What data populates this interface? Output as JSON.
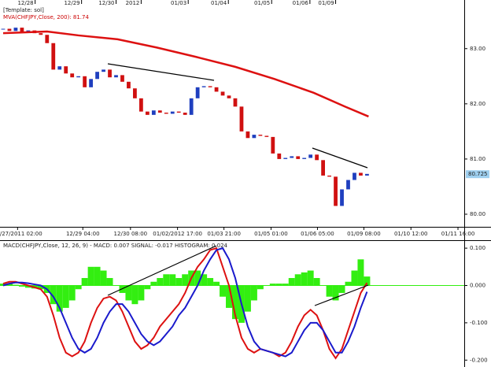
{
  "chart_data": [
    {
      "type": "candlestick",
      "template": "[Template: sol]",
      "legend": "MVA(CHFJPY,Close, 200): 81.74",
      "xlim": [
        0,
        74
      ],
      "ylim": [
        79.8,
        83.81
      ],
      "yticks": [
        {
          "value": 80,
          "label": "80.00"
        },
        {
          "value": 81,
          "label": "81.00"
        },
        {
          "value": 82,
          "label": "82.00"
        },
        {
          "value": 83,
          "label": "83.00"
        }
      ],
      "last_price": 80.725,
      "date_ticks": [
        {
          "value": 5.6,
          "label": "12/28"
        },
        {
          "value": 13,
          "label": "12/29"
        },
        {
          "value": 18.5,
          "label": "12/30"
        },
        {
          "value": 22.5,
          "label": "2012"
        },
        {
          "value": 30,
          "label": "01/03"
        },
        {
          "value": 36.4,
          "label": "01/04"
        },
        {
          "value": 43.3,
          "label": "01/05"
        },
        {
          "value": 49.4,
          "label": "01/06"
        },
        {
          "value": 53.5,
          "label": "01/09"
        }
      ],
      "time_ticks": [
        {
          "value": 2.8,
          "label": "12/27/2011 02:00"
        },
        {
          "value": 13.2,
          "label": "12/29 04:00"
        },
        {
          "value": 20.8,
          "label": "12/30 08:00"
        },
        {
          "value": 28.3,
          "label": "01/02/2012 17:00"
        },
        {
          "value": 35.7,
          "label": "01/03 21:00"
        },
        {
          "value": 43.2,
          "label": "01/05 01:00"
        },
        {
          "value": 50.6,
          "label": "01/06 05:00"
        },
        {
          "value": 58,
          "label": "01/09 08:00"
        },
        {
          "value": 65.5,
          "label": "01/10 12:00"
        },
        {
          "value": 73,
          "label": "01/11 16:00"
        }
      ],
      "up_color": "#1f3fbf",
      "down_color": "#d01010",
      "close": [
        83.36,
        83.32,
        83.38,
        83.3,
        83.33,
        83.28,
        83.25,
        83.1,
        82.62,
        82.68,
        82.55,
        82.48,
        82.5,
        82.3,
        82.45,
        82.58,
        82.62,
        82.48,
        82.52,
        82.4,
        82.28,
        82.1,
        81.86,
        81.8,
        81.88,
        81.84,
        81.82,
        81.86,
        81.84,
        81.8,
        82.1,
        82.3,
        82.32,
        82.3,
        82.22,
        82.15,
        82.1,
        81.95,
        81.5,
        81.38,
        81.44,
        81.42,
        81.4,
        81.1,
        81.0,
        81.02,
        81.05,
        81.0,
        81.02,
        81.08,
        80.98,
        80.7,
        80.68,
        80.15,
        80.45,
        80.62,
        80.75,
        80.7,
        80.73
      ],
      "ma": {
        "color": "#dd1111",
        "x": [
          0.5,
          7.5,
          12.5,
          18.75,
          25,
          31.25,
          37.5,
          43.75,
          50,
          55,
          58.75
        ],
        "values": [
          83.28,
          83.31,
          83.24,
          83.17,
          83.02,
          82.85,
          82.67,
          82.45,
          82.2,
          81.95,
          81.77
        ]
      }
    },
    {
      "type": "macd",
      "title": "MACD(CHFJPY,Close, 12, 26, 9) - MACD: 0.007  SIGNAL: -0.017  HISTOGRAM: 0.024",
      "ylim": [
        -0.21,
        0.115
      ],
      "yticks": [
        {
          "value": -0.2,
          "label": "-0.200"
        },
        {
          "value": -0.1,
          "label": "-0.100"
        },
        {
          "value": 0,
          "label": "0.000"
        },
        {
          "value": 0.1,
          "label": "0.100"
        }
      ],
      "histogram": {
        "color": "#33ee11",
        "values": [
          0.005,
          0.005,
          0.002,
          -0.003,
          -0.006,
          -0.008,
          -0.01,
          -0.02,
          -0.05,
          -0.07,
          -0.06,
          -0.04,
          -0.01,
          0.02,
          0.05,
          0.05,
          0.04,
          0.02,
          0,
          -0.02,
          -0.04,
          -0.05,
          -0.04,
          -0.01,
          0.01,
          0.02,
          0.03,
          0.03,
          0.02,
          0.03,
          0.04,
          0.04,
          0.03,
          0.02,
          0.01,
          -0.03,
          -0.06,
          -0.09,
          -0.1,
          -0.07,
          -0.04,
          -0.01,
          0,
          0.005,
          0.005,
          0.005,
          0.02,
          0.03,
          0.035,
          0.04,
          0.02,
          0,
          -0.03,
          -0.04,
          -0.02,
          0.01,
          0.04,
          0.07,
          0.024
        ]
      },
      "macd": {
        "color": "#dd1111",
        "values": [
          0.005,
          0.01,
          0.01,
          0.005,
          0,
          -0.005,
          -0.01,
          -0.03,
          -0.08,
          -0.14,
          -0.18,
          -0.19,
          -0.18,
          -0.15,
          -0.1,
          -0.06,
          -0.035,
          -0.03,
          -0.04,
          -0.07,
          -0.11,
          -0.15,
          -0.17,
          -0.16,
          -0.14,
          -0.11,
          -0.09,
          -0.07,
          -0.05,
          -0.02,
          0.02,
          0.05,
          0.07,
          0.095,
          0.1,
          0.05,
          0,
          -0.08,
          -0.14,
          -0.17,
          -0.18,
          -0.17,
          -0.175,
          -0.18,
          -0.19,
          -0.18,
          -0.15,
          -0.11,
          -0.08,
          -0.065,
          -0.08,
          -0.12,
          -0.17,
          -0.195,
          -0.17,
          -0.12,
          -0.07,
          -0.02,
          0.007
        ]
      },
      "signal": {
        "color": "#1a1acc",
        "values": [
          0,
          0.005,
          0.008,
          0.008,
          0.006,
          0.003,
          0,
          -0.01,
          -0.03,
          -0.06,
          -0.1,
          -0.14,
          -0.17,
          -0.18,
          -0.17,
          -0.14,
          -0.1,
          -0.07,
          -0.05,
          -0.05,
          -0.07,
          -0.1,
          -0.13,
          -0.15,
          -0.16,
          -0.15,
          -0.13,
          -0.11,
          -0.08,
          -0.06,
          -0.03,
          0,
          0.04,
          0.07,
          0.095,
          0.1,
          0.07,
          0.02,
          -0.05,
          -0.11,
          -0.15,
          -0.17,
          -0.175,
          -0.18,
          -0.185,
          -0.19,
          -0.18,
          -0.15,
          -0.12,
          -0.1,
          -0.1,
          -0.12,
          -0.15,
          -0.18,
          -0.18,
          -0.15,
          -0.11,
          -0.06,
          -0.017
        ]
      }
    }
  ]
}
